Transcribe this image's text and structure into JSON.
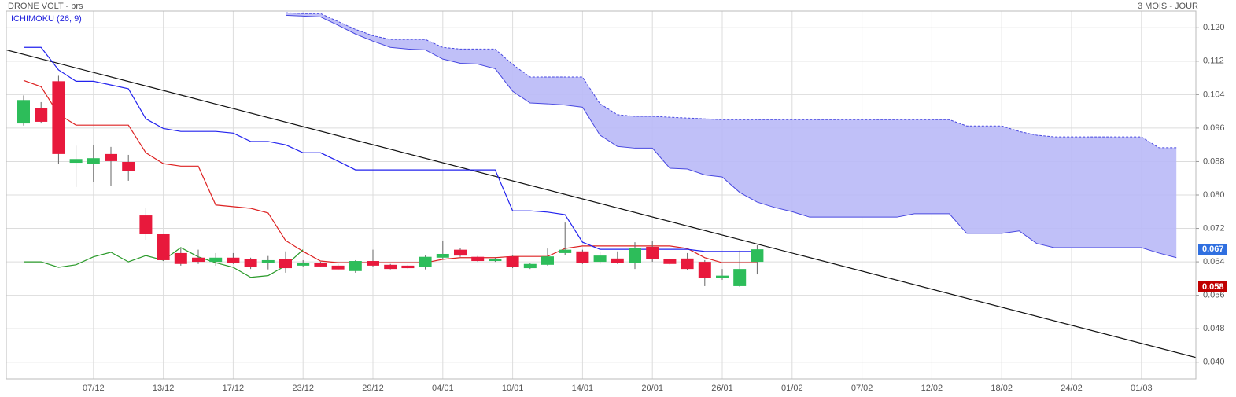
{
  "chart_data": {
    "type": "candlestick",
    "title": "DRONE VOLT - brs",
    "period": "3 MOIS - JOUR",
    "indicator": "ICHIMOKU (26, 9)",
    "indicator_color": "#2222dd",
    "grid": true,
    "ylim": [
      0.036,
      0.124
    ],
    "yticks": [
      {
        "value": 0.04,
        "label": "0.040"
      },
      {
        "value": 0.048,
        "label": "0.048"
      },
      {
        "value": 0.056,
        "label": "0.056"
      },
      {
        "value": 0.064,
        "label": "0.064"
      },
      {
        "value": 0.072,
        "label": "0.072"
      },
      {
        "value": 0.08,
        "label": "0.080"
      },
      {
        "value": 0.088,
        "label": "0.088"
      },
      {
        "value": 0.096,
        "label": "0.096"
      },
      {
        "value": 0.104,
        "label": "0.104"
      },
      {
        "value": 0.112,
        "label": "0.112"
      },
      {
        "value": 0.12,
        "label": "0.120"
      }
    ],
    "categories": [
      null,
      null,
      null,
      null,
      "07/12",
      null,
      null,
      null,
      "13/12",
      null,
      null,
      null,
      "17/12",
      null,
      null,
      null,
      "23/12",
      null,
      null,
      null,
      "29/12",
      null,
      null,
      null,
      "04/01",
      null,
      null,
      null,
      "10/01",
      null,
      null,
      null,
      "14/01",
      null,
      null,
      null,
      "20/01",
      null,
      null,
      null,
      "26/01",
      null,
      null,
      null,
      "01/02",
      null,
      null,
      null,
      "07/02",
      null,
      null,
      null,
      "12/02",
      null,
      null,
      null,
      "18/02",
      null,
      null,
      null,
      "24/02",
      null,
      null,
      null,
      "01/03",
      null,
      null
    ],
    "up_color": "#2dbd5a",
    "down_color": "#e8193c",
    "open": [
      0.0971,
      0.1008,
      0.1072,
      0.0877,
      0.0875,
      0.0898,
      0.0879,
      0.0751,
      0.0706,
      0.0661,
      0.065,
      0.064,
      0.065,
      0.0646,
      0.0638,
      0.0646,
      0.0631,
      0.0637,
      0.0631,
      0.0618,
      0.0642,
      0.0633,
      0.0631,
      0.0627,
      0.065,
      0.0669,
      0.0652,
      0.0642,
      0.0653,
      0.0625,
      0.0633,
      0.0661,
      0.0665,
      0.064,
      0.0648,
      0.0638,
      0.0676,
      0.0646,
      0.0648,
      0.064,
      0.0601,
      0.0582,
      0.064,
      null,
      null,
      null,
      null,
      null,
      null,
      null,
      null,
      null,
      null,
      null,
      null,
      null,
      null,
      null,
      null,
      null,
      null,
      null,
      null,
      null,
      null,
      null,
      null
    ],
    "high": [
      0.1038,
      0.1022,
      0.1085,
      0.0918,
      0.092,
      0.0915,
      0.0896,
      0.0768,
      0.0706,
      0.0672,
      0.0669,
      0.0661,
      0.0661,
      0.065,
      0.0654,
      0.0665,
      0.0644,
      0.064,
      0.0635,
      0.0644,
      0.0669,
      0.0635,
      0.0633,
      0.0655,
      0.0691,
      0.0674,
      0.0654,
      0.065,
      0.0655,
      0.0637,
      0.0672,
      0.0734,
      0.0669,
      0.0665,
      0.0665,
      0.0687,
      0.0689,
      0.0648,
      0.0661,
      0.0644,
      0.0623,
      0.0667,
      0.068,
      null,
      null,
      null,
      null,
      null,
      null,
      null,
      null,
      null,
      null,
      null,
      null,
      null,
      null,
      null,
      null,
      null,
      null,
      null,
      null,
      null,
      null,
      null,
      null
    ],
    "low": [
      0.0966,
      0.0971,
      0.0875,
      0.0819,
      0.0832,
      0.0822,
      0.0834,
      0.0693,
      0.0642,
      0.0631,
      0.0635,
      0.0631,
      0.0635,
      0.0623,
      0.0622,
      0.0614,
      0.0629,
      0.0627,
      0.062,
      0.0614,
      0.0629,
      0.0622,
      0.0623,
      0.0622,
      0.0646,
      0.0652,
      0.064,
      0.064,
      0.0625,
      0.0623,
      0.0631,
      0.0657,
      0.0635,
      0.0635,
      0.0635,
      0.0623,
      0.064,
      0.0633,
      0.062,
      0.0582,
      0.0597,
      0.058,
      0.061,
      null,
      null,
      null,
      null,
      null,
      null,
      null,
      null,
      null,
      null,
      null,
      null,
      null,
      null,
      null,
      null,
      null,
      null,
      null,
      null,
      null,
      null,
      null,
      null
    ],
    "close": [
      0.1027,
      0.0975,
      0.0898,
      0.0886,
      0.0888,
      0.0881,
      0.0858,
      0.0706,
      0.0644,
      0.0635,
      0.064,
      0.065,
      0.0638,
      0.0627,
      0.0644,
      0.0625,
      0.0637,
      0.0629,
      0.0622,
      0.0642,
      0.0631,
      0.0623,
      0.0625,
      0.0652,
      0.0659,
      0.0655,
      0.0642,
      0.0646,
      0.0627,
      0.0635,
      0.0653,
      0.0669,
      0.0638,
      0.0655,
      0.0638,
      0.0674,
      0.0646,
      0.0635,
      0.0623,
      0.0601,
      0.0607,
      0.0623,
      0.067,
      null,
      null,
      null,
      null,
      null,
      null,
      null,
      null,
      null,
      null,
      null,
      null,
      null,
      null,
      null,
      null,
      null,
      null,
      null,
      null,
      null,
      null,
      null,
      null
    ],
    "lines": [
      {
        "color": "#dd2222",
        "values": [
          0.1074,
          0.1059,
          0.0993,
          0.0967,
          0.0967,
          0.0967,
          0.0967,
          0.0901,
          0.0875,
          0.0869,
          0.0869,
          0.0776,
          0.0772,
          0.0768,
          0.0757,
          0.0691,
          0.0665,
          0.0642,
          0.0638,
          0.0638,
          0.0638,
          0.0638,
          0.0638,
          0.0638,
          0.0646,
          0.065,
          0.065,
          0.065,
          0.0653,
          0.0653,
          0.0653,
          0.0672,
          0.0678,
          0.0678,
          0.0678,
          0.0678,
          0.0678,
          0.0678,
          0.0672,
          0.065,
          0.0638,
          0.0638,
          0.0638,
          null,
          null,
          null,
          null,
          null,
          null,
          null,
          null,
          null,
          null,
          null,
          null,
          null,
          null,
          null,
          null,
          null,
          null,
          null,
          null,
          null,
          null,
          null,
          null
        ]
      },
      {
        "color": "#2222ee",
        "values": [
          0.1153,
          0.1153,
          0.1099,
          0.1072,
          0.1072,
          0.1063,
          0.1054,
          0.0982,
          0.0959,
          0.0952,
          0.0952,
          0.0952,
          0.0948,
          0.0928,
          0.0928,
          0.092,
          0.0901,
          0.0901,
          0.0881,
          0.086,
          0.086,
          0.086,
          0.086,
          0.086,
          0.086,
          0.086,
          0.086,
          0.086,
          0.0762,
          0.0762,
          0.0759,
          0.0753,
          0.0687,
          0.067,
          0.067,
          0.067,
          0.067,
          0.067,
          0.067,
          0.0665,
          0.0665,
          0.0665,
          0.0665,
          null,
          null,
          null,
          null,
          null,
          null,
          null,
          null,
          null,
          null,
          null,
          null,
          null,
          null,
          null,
          null,
          null,
          null,
          null,
          null,
          null,
          null,
          null,
          null
        ]
      },
      {
        "color": "#2a9a2a",
        "values": [
          0.064,
          0.064,
          0.0627,
          0.0633,
          0.0652,
          0.0663,
          0.064,
          0.0655,
          0.0644,
          0.0674,
          0.0652,
          0.0638,
          0.0627,
          0.0603,
          0.0607,
          0.0631,
          0.0669,
          null,
          null,
          null,
          null,
          null,
          null,
          null,
          null,
          null,
          null,
          null,
          null,
          null,
          null,
          null,
          null,
          null,
          null,
          null,
          null,
          null,
          null,
          null,
          null,
          null,
          null,
          null,
          null,
          null,
          null,
          null,
          null,
          null,
          null,
          null,
          null,
          null,
          null,
          null,
          null,
          null,
          null,
          null,
          null,
          null,
          null,
          null,
          null,
          null,
          null
        ]
      }
    ],
    "cloud": {
      "color": "#4848e0",
      "fill": "#b9b9f7",
      "upper": [
        null,
        null,
        null,
        null,
        null,
        null,
        null,
        null,
        null,
        null,
        null,
        null,
        null,
        null,
        null,
        0.1236,
        0.1234,
        0.1234,
        0.1215,
        0.1196,
        0.1181,
        0.1172,
        0.1172,
        0.1172,
        0.1153,
        0.1149,
        0.1149,
        0.1149,
        0.1112,
        0.1082,
        0.1082,
        0.1082,
        0.1082,
        0.1018,
        0.0992,
        0.0988,
        0.0988,
        0.0986,
        0.0984,
        0.0982,
        0.098,
        0.098,
        0.098,
        0.098,
        0.098,
        0.098,
        0.098,
        0.098,
        0.098,
        0.098,
        0.098,
        0.098,
        0.098,
        0.098,
        0.0965,
        0.0965,
        0.0965,
        0.0952,
        0.0943,
        0.0939,
        0.0939,
        0.0939,
        0.0939,
        0.0939,
        0.0939,
        0.0913,
        0.0913
      ],
      "lower": [
        null,
        null,
        null,
        null,
        null,
        null,
        null,
        null,
        null,
        null,
        null,
        null,
        null,
        null,
        null,
        0.123,
        0.1228,
        0.1226,
        0.1206,
        0.1185,
        0.1168,
        0.1153,
        0.1149,
        0.1147,
        0.1125,
        0.1115,
        0.1113,
        0.1102,
        0.1048,
        0.102,
        0.1018,
        0.1015,
        0.101,
        0.0943,
        0.0916,
        0.0912,
        0.0912,
        0.0864,
        0.0862,
        0.0848,
        0.0843,
        0.0806,
        0.0783,
        0.077,
        0.076,
        0.0747,
        0.0747,
        0.0747,
        0.0747,
        0.0747,
        0.0747,
        0.0755,
        0.0755,
        0.0755,
        0.0708,
        0.0708,
        0.0708,
        0.0714,
        0.0684,
        0.0674,
        0.0674,
        0.0674,
        0.0674,
        0.0674,
        0.0674,
        0.0661,
        0.065
      ]
    },
    "trendline": {
      "color": "#111111",
      "x": [
        -1,
        69
      ],
      "values": [
        0.1147,
        0.0391
      ]
    },
    "price_labels": [
      {
        "value": 0.067,
        "label": "0.067",
        "color": "#2f6fe0"
      },
      {
        "value": 0.058,
        "label": "0.058",
        "color": "#c00000"
      }
    ]
  }
}
